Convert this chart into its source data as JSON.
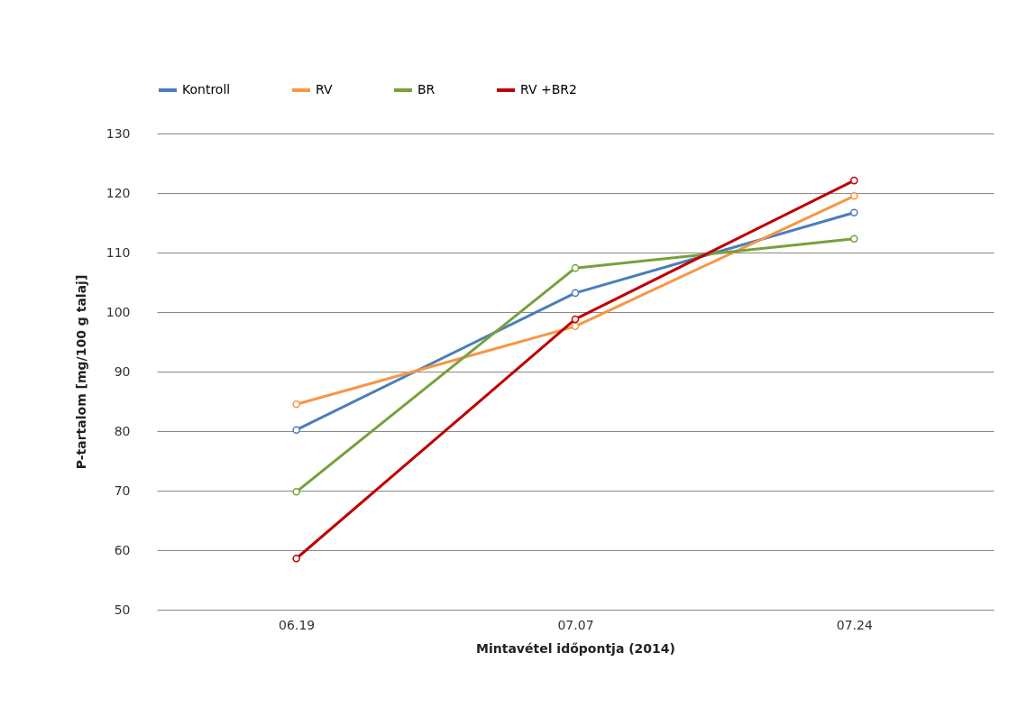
{
  "chart_data": {
    "type": "line",
    "xlabel": "Mintavétel időpontja (2014)",
    "ylabel": "P-tartalom [mg/100 g talaj]",
    "categories": [
      "06.19",
      "07.07",
      "07.24"
    ],
    "series": [
      {
        "name": "Kontroll",
        "color": "#4a7ebb",
        "values": [
          80.2,
          103.2,
          116.7
        ]
      },
      {
        "name": "RV",
        "color": "#f79646",
        "values": [
          84.5,
          97.6,
          119.5
        ]
      },
      {
        "name": "BR",
        "color": "#77a13c",
        "values": [
          69.8,
          107.4,
          112.3
        ]
      },
      {
        "name": "RV +BR2",
        "color": "#c00000",
        "values": [
          58.6,
          98.8,
          122.1
        ]
      }
    ],
    "ylim": [
      50,
      130
    ],
    "yticks": [
      50,
      60,
      70,
      80,
      90,
      100,
      110,
      120,
      130
    ],
    "grid": "y",
    "legend": "top",
    "marker": "circle",
    "line_style": "solid"
  }
}
